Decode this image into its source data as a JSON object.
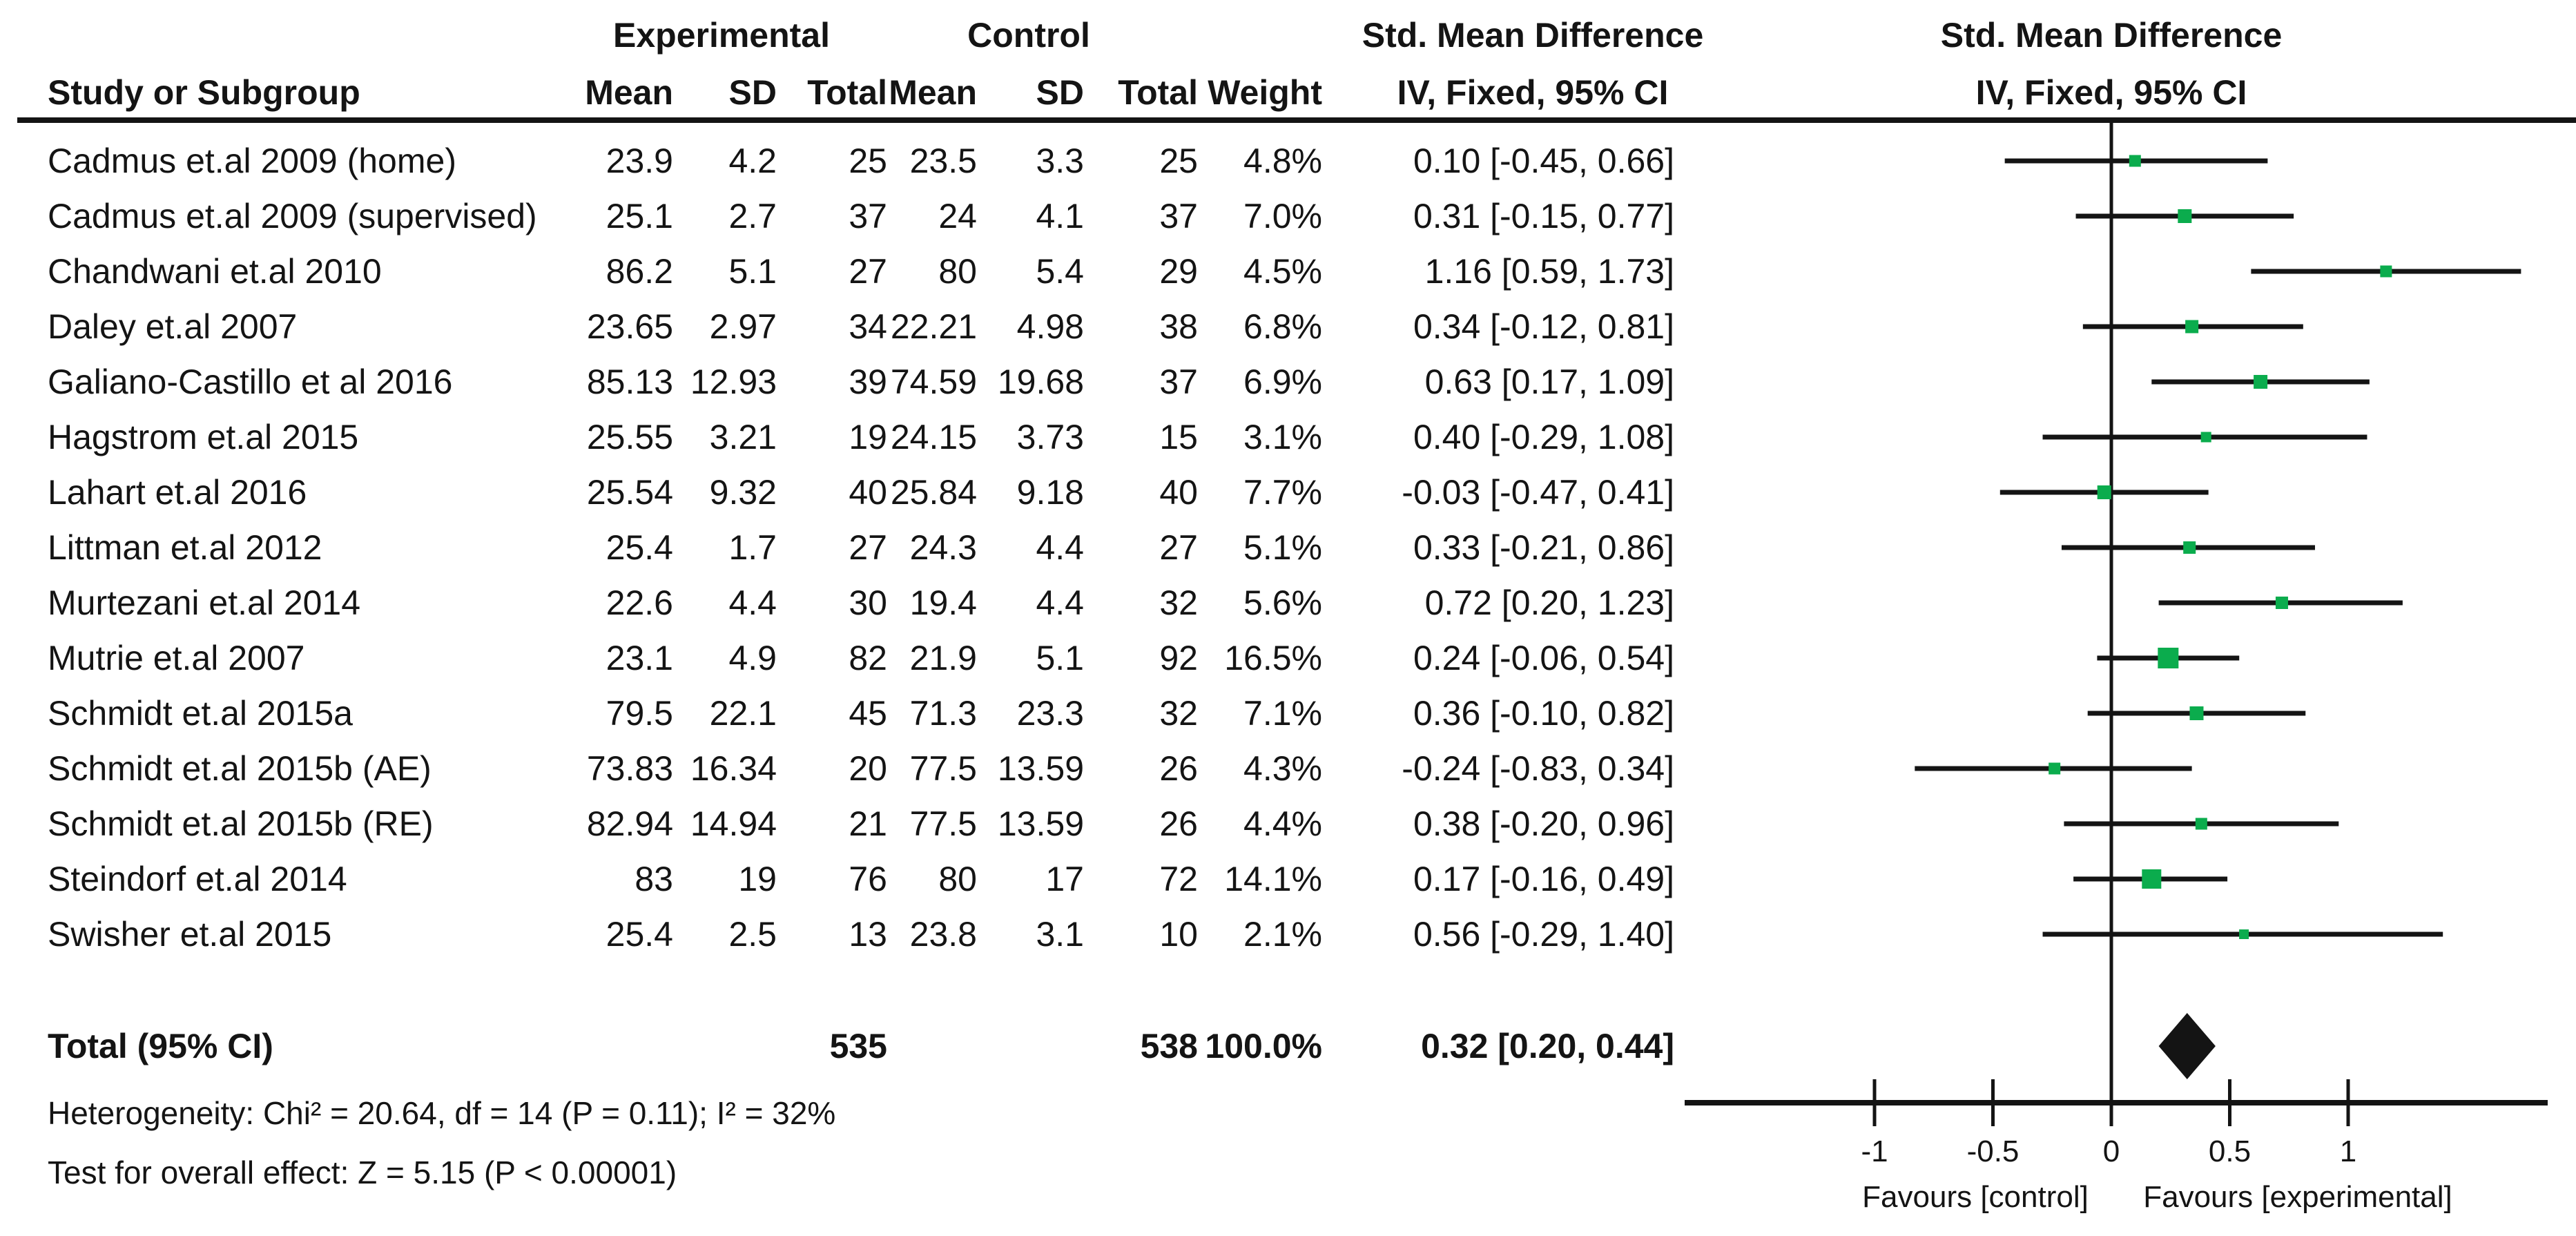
{
  "colors": {
    "marker_green": "#0bac4d",
    "ink": "#141414",
    "background": "#ffffff"
  },
  "header": {
    "experimental": "Experimental",
    "control": "Control",
    "smd_text_col": "Std. Mean Difference",
    "smd_plot_col": "Std. Mean Difference",
    "study_col": "Study or Subgroup",
    "mean_col": "Mean",
    "sd_col": "SD",
    "total_col": "Total",
    "mean2_col": "Mean",
    "sd2_col": "SD",
    "total2_col": "Total",
    "weight_col": "Weight",
    "method_text_col": "IV, Fixed, 95% CI",
    "method_plot_col": "IV, Fixed, 95% CI"
  },
  "rows": [
    {
      "study": "Cadmus et.al 2009 (home)",
      "e_mean": "23.9",
      "e_sd": "4.2",
      "e_total": "25",
      "c_mean": "23.5",
      "c_sd": "3.3",
      "c_total": "25",
      "weight": "4.8%",
      "ci": "0.10 [-0.45, 0.66]"
    },
    {
      "study": "Cadmus et.al 2009 (supervised)",
      "e_mean": "25.1",
      "e_sd": "2.7",
      "e_total": "37",
      "c_mean": "24",
      "c_sd": "4.1",
      "c_total": "37",
      "weight": "7.0%",
      "ci": "0.31 [-0.15, 0.77]"
    },
    {
      "study": "Chandwani et.al 2010",
      "e_mean": "86.2",
      "e_sd": "5.1",
      "e_total": "27",
      "c_mean": "80",
      "c_sd": "5.4",
      "c_total": "29",
      "weight": "4.5%",
      "ci": "1.16 [0.59, 1.73]"
    },
    {
      "study": "Daley et.al 2007",
      "e_mean": "23.65",
      "e_sd": "2.97",
      "e_total": "34",
      "c_mean": "22.21",
      "c_sd": "4.98",
      "c_total": "38",
      "weight": "6.8%",
      "ci": "0.34 [-0.12, 0.81]"
    },
    {
      "study": "Galiano-Castillo et al 2016",
      "e_mean": "85.13",
      "e_sd": "12.93",
      "e_total": "39",
      "c_mean": "74.59",
      "c_sd": "19.68",
      "c_total": "37",
      "weight": "6.9%",
      "ci": "0.63 [0.17, 1.09]"
    },
    {
      "study": "Hagstrom et.al 2015",
      "e_mean": "25.55",
      "e_sd": "3.21",
      "e_total": "19",
      "c_mean": "24.15",
      "c_sd": "3.73",
      "c_total": "15",
      "weight": "3.1%",
      "ci": "0.40 [-0.29, 1.08]"
    },
    {
      "study": "Lahart et.al 2016",
      "e_mean": "25.54",
      "e_sd": "9.32",
      "e_total": "40",
      "c_mean": "25.84",
      "c_sd": "9.18",
      "c_total": "40",
      "weight": "7.7%",
      "ci": "-0.03 [-0.47, 0.41]"
    },
    {
      "study": "Littman et.al 2012",
      "e_mean": "25.4",
      "e_sd": "1.7",
      "e_total": "27",
      "c_mean": "24.3",
      "c_sd": "4.4",
      "c_total": "27",
      "weight": "5.1%",
      "ci": "0.33 [-0.21, 0.86]"
    },
    {
      "study": "Murtezani et.al 2014",
      "e_mean": "22.6",
      "e_sd": "4.4",
      "e_total": "30",
      "c_mean": "19.4",
      "c_sd": "4.4",
      "c_total": "32",
      "weight": "5.6%",
      "ci": "0.72 [0.20, 1.23]"
    },
    {
      "study": "Mutrie et.al 2007",
      "e_mean": "23.1",
      "e_sd": "4.9",
      "e_total": "82",
      "c_mean": "21.9",
      "c_sd": "5.1",
      "c_total": "92",
      "weight": "16.5%",
      "ci": "0.24 [-0.06, 0.54]"
    },
    {
      "study": "Schmidt et.al 2015a",
      "e_mean": "79.5",
      "e_sd": "22.1",
      "e_total": "45",
      "c_mean": "71.3",
      "c_sd": "23.3",
      "c_total": "32",
      "weight": "7.1%",
      "ci": "0.36 [-0.10, 0.82]"
    },
    {
      "study": "Schmidt et.al 2015b (AE)",
      "e_mean": "73.83",
      "e_sd": "16.34",
      "e_total": "20",
      "c_mean": "77.5",
      "c_sd": "13.59",
      "c_total": "26",
      "weight": "4.3%",
      "ci": "-0.24 [-0.83, 0.34]"
    },
    {
      "study": "Schmidt et.al 2015b (RE)",
      "e_mean": "82.94",
      "e_sd": "14.94",
      "e_total": "21",
      "c_mean": "77.5",
      "c_sd": "13.59",
      "c_total": "26",
      "weight": "4.4%",
      "ci": "0.38 [-0.20, 0.96]"
    },
    {
      "study": "Steindorf et.al 2014",
      "e_mean": "83",
      "e_sd": "19",
      "e_total": "76",
      "c_mean": "80",
      "c_sd": "17",
      "c_total": "72",
      "weight": "14.1%",
      "ci": "0.17 [-0.16, 0.49]"
    },
    {
      "study": "Swisher et.al 2015",
      "e_mean": "25.4",
      "e_sd": "2.5",
      "e_total": "13",
      "c_mean": "23.8",
      "c_sd": "3.1",
      "c_total": "10",
      "weight": "2.1%",
      "ci": "0.56 [-0.29, 1.40]"
    }
  ],
  "total_row": {
    "label": "Total (95% CI)",
    "e_total": "535",
    "c_total": "538",
    "weight": "100.0%",
    "ci": "0.32 [0.20, 0.44]"
  },
  "footer": {
    "heterogeneity": "Heterogeneity: Chi² = 20.64, df = 14 (P = 0.11); I² = 32%",
    "overall_effect": "Test for overall effect: Z = 5.15 (P < 0.00001)"
  },
  "axis": {
    "ticks": [
      {
        "v": -1,
        "label": "-1"
      },
      {
        "v": -0.5,
        "label": "-0.5"
      },
      {
        "v": 0,
        "label": "0"
      },
      {
        "v": 0.5,
        "label": "0.5"
      },
      {
        "v": 1,
        "label": "1"
      }
    ],
    "favours_left": "Favours [control]",
    "favours_right": "Favours [experimental]"
  },
  "chart_data": {
    "type": "forest",
    "title": "Std. Mean Difference, IV, Fixed, 95% CI",
    "effect_measure": "Std. Mean Difference",
    "model": "IV, Fixed, 95% CI",
    "xlim": [
      -1.8,
      1.85
    ],
    "x_ticks": [
      -1,
      -0.5,
      0,
      0.5,
      1
    ],
    "xlabel_left": "Favours [control]",
    "xlabel_right": "Favours [experimental]",
    "studies": [
      {
        "name": "Cadmus et.al 2009 (home)",
        "smd": 0.1,
        "ci_low": -0.45,
        "ci_high": 0.66,
        "weight_pct": 4.8
      },
      {
        "name": "Cadmus et.al 2009 (supervised)",
        "smd": 0.31,
        "ci_low": -0.15,
        "ci_high": 0.77,
        "weight_pct": 7.0
      },
      {
        "name": "Chandwani et.al 2010",
        "smd": 1.16,
        "ci_low": 0.59,
        "ci_high": 1.73,
        "weight_pct": 4.5
      },
      {
        "name": "Daley et.al 2007",
        "smd": 0.34,
        "ci_low": -0.12,
        "ci_high": 0.81,
        "weight_pct": 6.8
      },
      {
        "name": "Galiano-Castillo et al 2016",
        "smd": 0.63,
        "ci_low": 0.17,
        "ci_high": 1.09,
        "weight_pct": 6.9
      },
      {
        "name": "Hagstrom et.al 2015",
        "smd": 0.4,
        "ci_low": -0.29,
        "ci_high": 1.08,
        "weight_pct": 3.1
      },
      {
        "name": "Lahart et.al 2016",
        "smd": -0.03,
        "ci_low": -0.47,
        "ci_high": 0.41,
        "weight_pct": 7.7
      },
      {
        "name": "Littman et.al 2012",
        "smd": 0.33,
        "ci_low": -0.21,
        "ci_high": 0.86,
        "weight_pct": 5.1
      },
      {
        "name": "Murtezani et.al 2014",
        "smd": 0.72,
        "ci_low": 0.2,
        "ci_high": 1.23,
        "weight_pct": 5.6
      },
      {
        "name": "Mutrie et.al 2007",
        "smd": 0.24,
        "ci_low": -0.06,
        "ci_high": 0.54,
        "weight_pct": 16.5
      },
      {
        "name": "Schmidt et.al 2015a",
        "smd": 0.36,
        "ci_low": -0.1,
        "ci_high": 0.82,
        "weight_pct": 7.1
      },
      {
        "name": "Schmidt et.al 2015b (AE)",
        "smd": -0.24,
        "ci_low": -0.83,
        "ci_high": 0.34,
        "weight_pct": 4.3
      },
      {
        "name": "Schmidt et.al 2015b (RE)",
        "smd": 0.38,
        "ci_low": -0.2,
        "ci_high": 0.96,
        "weight_pct": 4.4
      },
      {
        "name": "Steindorf et.al 2014",
        "smd": 0.17,
        "ci_low": -0.16,
        "ci_high": 0.49,
        "weight_pct": 14.1
      },
      {
        "name": "Swisher et.al 2015",
        "smd": 0.56,
        "ci_low": -0.29,
        "ci_high": 1.4,
        "weight_pct": 2.1
      }
    ],
    "total": {
      "name": "Total (95% CI)",
      "smd": 0.32,
      "ci_low": 0.2,
      "ci_high": 0.44,
      "weight_pct": 100.0,
      "experimental_n": 535,
      "control_n": 538
    },
    "heterogeneity": {
      "chi2": 20.64,
      "df": 14,
      "p": "0.11",
      "i2_pct": 32
    },
    "overall_effect": {
      "z": 5.15,
      "p": "< 0.00001"
    }
  }
}
